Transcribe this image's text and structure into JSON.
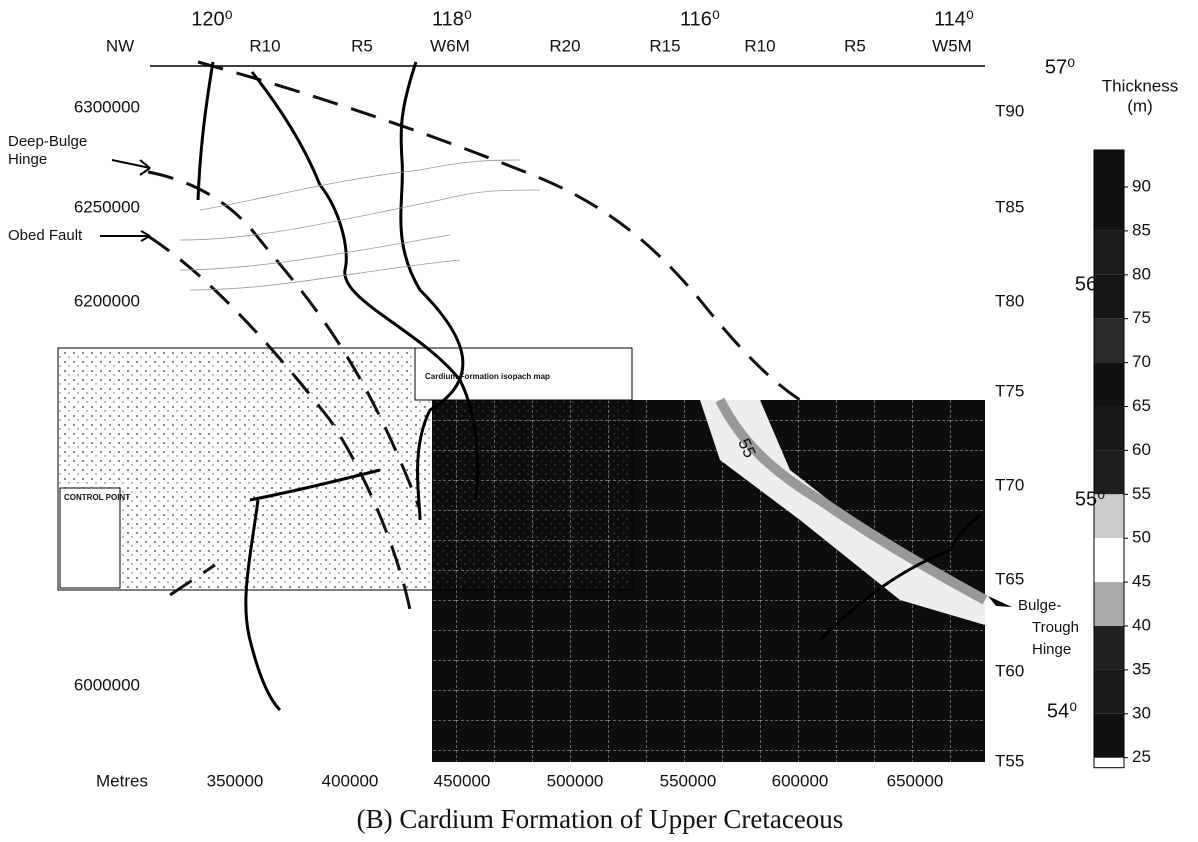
{
  "map": {
    "caption": "(B)  Cardium Formation of Upper Cretaceous",
    "longitudes": [
      "120⁰",
      "118⁰",
      "116⁰",
      "114⁰"
    ],
    "ranges": [
      "NW",
      "R10",
      "R5",
      "W6M",
      "R20",
      "R15",
      "R10",
      "R5",
      "W5M"
    ],
    "latitudes": [
      "57⁰",
      "56⁰",
      "55⁰",
      "54⁰"
    ],
    "townships": [
      "T90",
      "T85",
      "T80",
      "T75",
      "T70",
      "T65",
      "T60",
      "T55"
    ],
    "northings": [
      6300000,
      6250000,
      6200000,
      6000000
    ],
    "x_axis_label": "Metres",
    "eastings": [
      350000,
      400000,
      450000,
      500000,
      550000,
      600000,
      650000
    ],
    "annotations": {
      "deep_bulge_hinge": [
        "Deep-Bulge",
        "Hinge"
      ],
      "obed_fault": "Obed Fault",
      "bulge_trough_hinge": [
        "Bulge-",
        "Trough",
        "Hinge"
      ],
      "contour_label": "55"
    },
    "inset": {
      "title": "Cardium Formation isopach map",
      "control_point": "CONTROL POINT"
    },
    "legend": {
      "title": [
        "Thickness",
        "(m)"
      ],
      "values": [
        90,
        85,
        80,
        75,
        70,
        65,
        60,
        55,
        50,
        45,
        40,
        35,
        30,
        25
      ]
    }
  }
}
